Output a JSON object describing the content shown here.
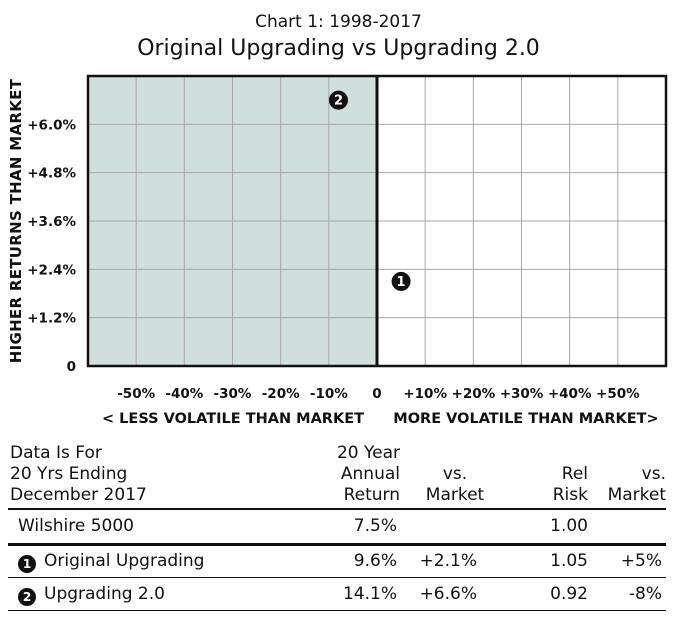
{
  "chart_data": {
    "type": "scatter",
    "subtitle": "Chart 1: 1998-2017",
    "title": "Original Upgrading vs Upgrading 2.0",
    "ylabel": "HIGHER RETURNS THAN MARKET",
    "xlabel_left": "< LESS VOLATILE THAN MARKET",
    "xlabel_right": "MORE VOLATILE THAN MARKET>",
    "x_ticks": [
      "-50%",
      "-40%",
      "-30%",
      "-20%",
      "-10%",
      "0",
      "+10%",
      "+20%",
      "+30%",
      "+40%",
      "+50%"
    ],
    "y_ticks": [
      "0",
      "+1.2%",
      "+2.4%",
      "+3.6%",
      "+4.8%",
      "+6.0%"
    ],
    "xlim": [
      -60,
      60
    ],
    "ylim": [
      0,
      7.2
    ],
    "grid": true,
    "shaded_region": {
      "x": [
        -60,
        0
      ],
      "color": "#cfe0dc"
    },
    "points": [
      {
        "label": "1",
        "x": 5,
        "y": 2.1
      },
      {
        "label": "2",
        "x": -8,
        "y": 6.6
      }
    ]
  },
  "table": {
    "header": {
      "c1": [
        "Data Is For",
        "20 Yrs Ending",
        "December 2017"
      ],
      "c2": [
        "20 Year",
        "Annual",
        "Return"
      ],
      "c3": [
        "vs.",
        "Market"
      ],
      "c4": [
        "Rel",
        "Risk"
      ],
      "c5": [
        "vs.",
        "Market"
      ]
    },
    "rows": [
      {
        "badge": "",
        "name": "Wilshire 5000",
        "ret": "7.5%",
        "vs1": "",
        "risk": "1.00",
        "vs2": ""
      },
      {
        "badge": "1",
        "name": "Original Upgrading",
        "ret": "9.6%",
        "vs1": "+2.1%",
        "risk": "1.05",
        "vs2": "+5%"
      },
      {
        "badge": "2",
        "name": "Upgrading 2.0",
        "ret": "14.1%",
        "vs1": "+6.6%",
        "risk": "0.92",
        "vs2": "-8%"
      }
    ]
  }
}
